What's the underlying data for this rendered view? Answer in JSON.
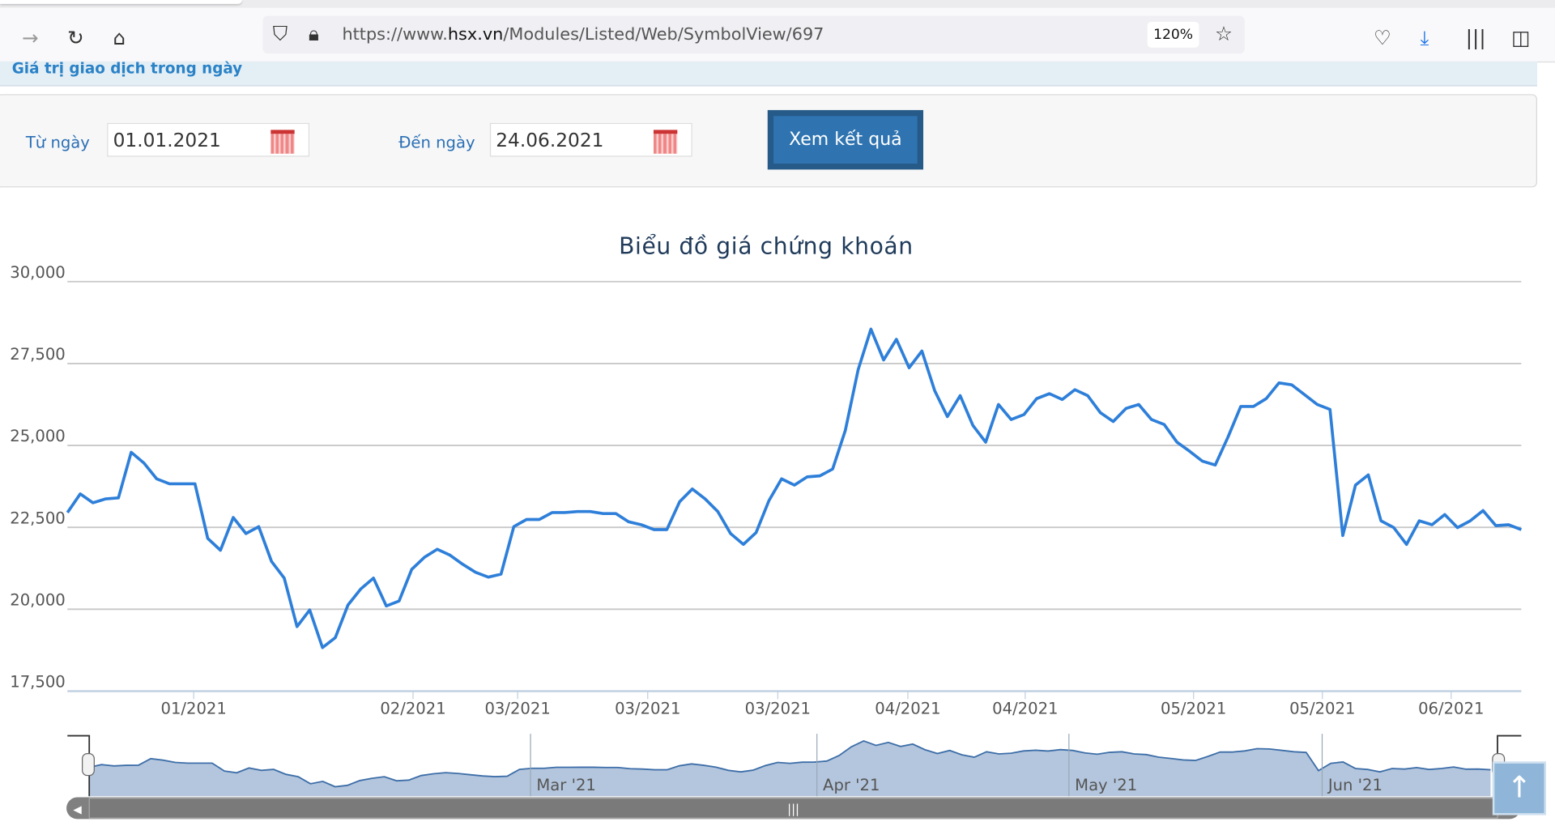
{
  "browser": {
    "url_prefix": "https://www.",
    "url_domain": "hsx.vn",
    "url_path": "/Modules/Listed/Web/SymbolView/697",
    "zoom": "120%",
    "icons": [
      "back-icon",
      "reload-icon",
      "home-icon",
      "shield-icon",
      "lock-icon",
      "star-icon",
      "pocket-icon",
      "download-icon",
      "library-icon",
      "sidebar-icon"
    ]
  },
  "page": {
    "banner": "Giá trị giao dịch trong ngày",
    "from_label": "Từ ngày",
    "from_value": "01.01.2021",
    "to_label": "Đến ngày",
    "to_value": "24.06.2021",
    "submit": "Xem kết quả"
  },
  "chart_data": {
    "type": "line",
    "title": "Biểu đồ giá chứng khoán",
    "ylim": [
      17500,
      30000
    ],
    "y_ticks": [
      "30,000",
      "27,500",
      "25,000",
      "22,500",
      "20,000",
      "17,500"
    ],
    "y_tick_values": [
      30000,
      27500,
      25000,
      22500,
      20000,
      17500
    ],
    "grid": true,
    "color": "#2e7fd9",
    "x_ticks": [
      {
        "label": "01/2021",
        "index": 9.9
      },
      {
        "label": "02/2021",
        "index": 27.1
      },
      {
        "label": "03/2021",
        "index": 35.3
      },
      {
        "label": "03/2021",
        "index": 45.5
      },
      {
        "label": "03/2021",
        "index": 55.7
      },
      {
        "label": "04/2021",
        "index": 65.9
      },
      {
        "label": "04/2021",
        "index": 75.1
      },
      {
        "label": "05/2021",
        "index": 88.3
      },
      {
        "label": "05/2021",
        "index": 98.4
      },
      {
        "label": "06/2021",
        "index": 108.5
      }
    ],
    "values": [
      22950,
      23520,
      23250,
      23370,
      23400,
      24790,
      24460,
      23980,
      23830,
      23830,
      23830,
      22160,
      21800,
      22800,
      22310,
      22520,
      21460,
      20950,
      19470,
      19980,
      18830,
      19130,
      20130,
      20620,
      20950,
      20100,
      20250,
      21220,
      21590,
      21830,
      21650,
      21370,
      21130,
      20980,
      21070,
      22520,
      22740,
      22740,
      22950,
      22950,
      22980,
      22980,
      22920,
      22920,
      22670,
      22580,
      22430,
      22430,
      23280,
      23670,
      23370,
      22980,
      22310,
      21980,
      22340,
      23310,
      23980,
      23790,
      24040,
      24070,
      24280,
      25460,
      27310,
      28550,
      27610,
      28240,
      27370,
      27880,
      26670,
      25880,
      26520,
      25610,
      25100,
      26250,
      25790,
      25940,
      26430,
      26580,
      26400,
      26700,
      26520,
      26000,
      25730,
      26130,
      26250,
      25790,
      25640,
      25100,
      24820,
      24520,
      24400,
      25250,
      26190,
      26190,
      26430,
      26910,
      26850,
      26550,
      26250,
      26100,
      22250,
      23790,
      24100,
      22700,
      22490,
      21980,
      22700,
      22580,
      22890,
      22490,
      22700,
      23010,
      22550,
      22580,
      22430
    ],
    "navigator": {
      "labels": [
        {
          "label": "Mar '21",
          "index": 35.9
        },
        {
          "label": "Apr '21",
          "index": 59.2
        },
        {
          "label": "May '21",
          "index": 79.7
        },
        {
          "label": "Jun '21",
          "index": 100.3
        }
      ]
    }
  }
}
